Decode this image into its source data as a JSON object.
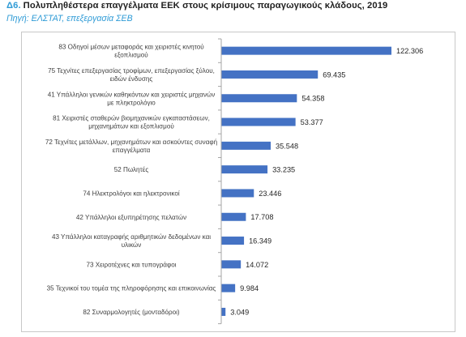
{
  "header": {
    "code": "Δ6.",
    "title": "Πολυπληθέστερα επαγγέλματα ΕΕΚ στους κρίσιμους παραγωγικούς κλάδους, 2019",
    "source": "Πηγή: ΕΛΣΤΑΤ, επεξεργασία ΣΕΒ"
  },
  "colors": {
    "bar": "#4472c4",
    "axis": "#a6a6a6",
    "accent": "#2f9bd6"
  },
  "chart_data": {
    "type": "bar",
    "orientation": "horizontal",
    "categories": [
      [
        "83 Οδηγοί μέσων μεταφοράς και χειριστές κινητού",
        "εξοπλισμού"
      ],
      [
        "75 Τεχνίτες επεξεργασίας τροφίμων, επεξεργασίας ξύλου,",
        "ειδών ένδυσης"
      ],
      [
        "41 Υπάλληλοι γενικών καθηκόντων και χειριστές μηχανών",
        "με πληκτρολόγιο"
      ],
      [
        "81 Χειριστές σταθερών βιομηχανικών εγκαταστάσεων,",
        "μηχανημάτων και εξοπλισμού"
      ],
      [
        "72 Τεχνίτες μετάλλων, μηχανημάτων και ασκούντες συναφή",
        "επαγγέλματα"
      ],
      [
        "52 Πωλητές"
      ],
      [
        "74 Ηλεκτρολόγοι και ηλεκτρονικοί"
      ],
      [
        "42 Υπάλληλοι εξυπηρέτησης πελατών"
      ],
      [
        "43 Υπάλληλοι καταγραφής αριθμητικών δεδομένων και",
        "υλικών"
      ],
      [
        "73 Χειροτέχνες και τυπογράφοι"
      ],
      [
        "35 Τεχνικοί του τομέα της πληροφόρησης και επικοινωνίας"
      ],
      [
        "82 Συναρμολογητές (μονταδόροι)"
      ]
    ],
    "values": [
      122306,
      69435,
      54358,
      53377,
      35548,
      33235,
      23446,
      17708,
      16349,
      14072,
      9984,
      3049
    ],
    "value_labels": [
      "122.306",
      "69.435",
      "54.358",
      "53.377",
      "35.548",
      "33.235",
      "23.446",
      "17.708",
      "16.349",
      "14.072",
      "9.984",
      "3.049"
    ],
    "xlim": [
      0,
      122306
    ],
    "grid": false,
    "legend": "none"
  }
}
